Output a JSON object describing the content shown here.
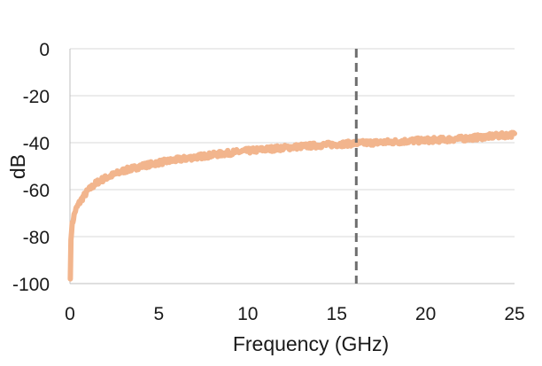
{
  "colors": {
    "series": "#F2B58D",
    "marker_line": "#6E6E6E",
    "grid": "#D9D9D9",
    "axis": "#BFBFBF",
    "text": "#1A1A1A"
  },
  "chart_data": {
    "type": "line",
    "title": "",
    "xlabel": "Frequency (GHz)",
    "ylabel": "dB",
    "xlim": [
      0,
      25
    ],
    "ylim": [
      -100,
      0
    ],
    "xticks": [
      0,
      5,
      10,
      15,
      20,
      25
    ],
    "yticks": [
      0,
      -20,
      -40,
      -60,
      -80,
      -100
    ],
    "grid": "horizontal",
    "legend": "none",
    "vertical_marker": {
      "x": 16.1,
      "style": "dashed"
    },
    "series": [
      {
        "noisy": true,
        "x": [
          0.02,
          0.05,
          0.1,
          0.2,
          0.3,
          0.5,
          0.75,
          1,
          1.5,
          2,
          2.5,
          3,
          4,
          5,
          6,
          7,
          8,
          9,
          10,
          11,
          12,
          13,
          14,
          15,
          16,
          17,
          18,
          19,
          20,
          21,
          22,
          23,
          24,
          25
        ],
        "y": [
          -98,
          -82,
          -76,
          -72,
          -69,
          -66,
          -63,
          -60.5,
          -57,
          -55,
          -53.5,
          -52,
          -50,
          -48.5,
          -47.3,
          -46.2,
          -45.2,
          -44.3,
          -43.5,
          -42.8,
          -42.2,
          -41.6,
          -41.1,
          -40.7,
          -40.3,
          -40.0,
          -39.7,
          -39.3,
          -39.0,
          -38.7,
          -38.3,
          -37.7,
          -37.1,
          -36.5
        ]
      }
    ]
  }
}
